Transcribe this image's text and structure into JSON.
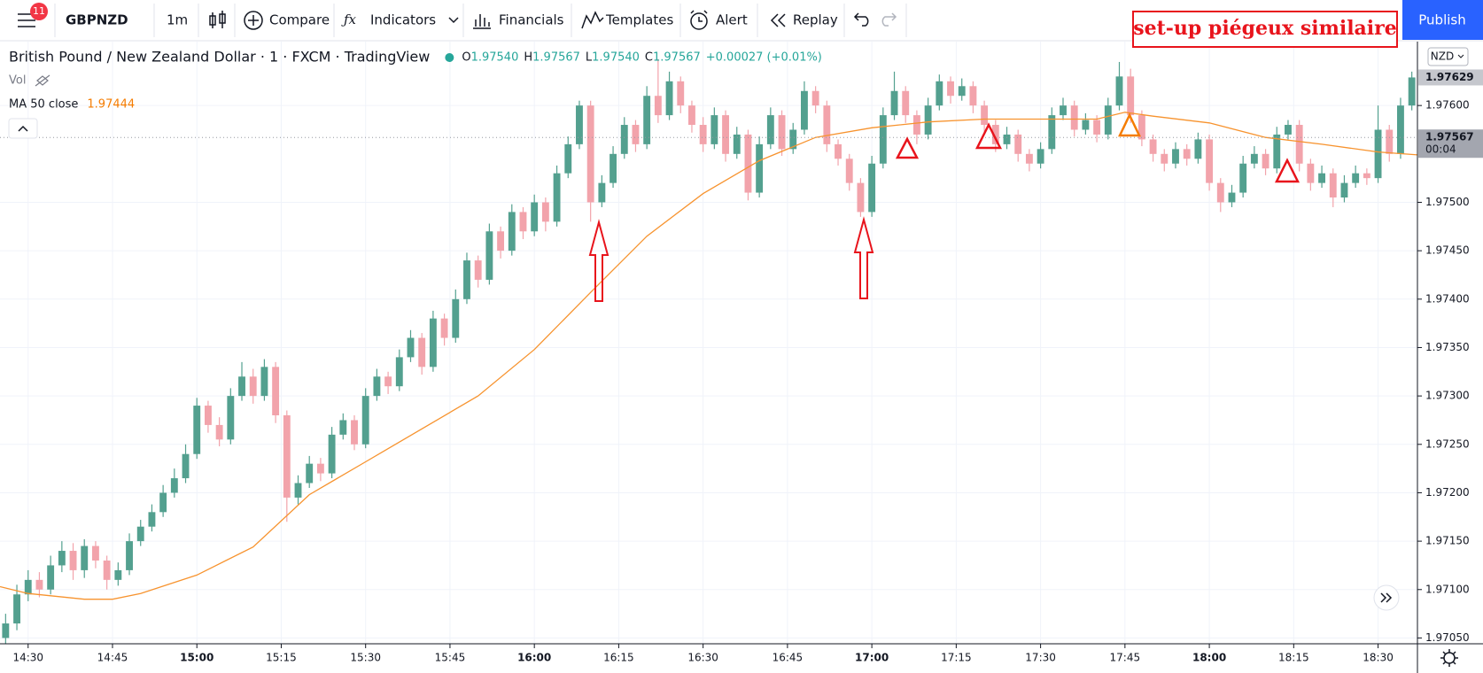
{
  "toolbar": {
    "badge": "11",
    "symbol": "GBPNZD",
    "interval": "1m",
    "buttons": [
      "Compare",
      "Indicators",
      "Financials",
      "Templates",
      "Alert",
      "Replay"
    ],
    "publish": "Publish"
  },
  "annotation": "set-up piégeux similaire",
  "legend": {
    "title": "British Pound / New Zealand Dollar · 1 · FXCM · TradingView",
    "ohlc": [
      {
        "k": "O",
        "v": "1.97540"
      },
      {
        "k": "H",
        "v": "1.97567"
      },
      {
        "k": "L",
        "v": "1.97540"
      },
      {
        "k": "C",
        "v": "1.97567"
      }
    ],
    "change": "+0.00027 (+0.01%)",
    "vol": "Vol",
    "ma_label": "MA 50 close",
    "ma_value": "1.97444"
  },
  "chart_data": {
    "type": "candlestick",
    "currency": "NZD",
    "up_color": "#53a08f",
    "down_color": "#f2a3ab",
    "grid": true,
    "xlim": [
      "14:25",
      "18:37"
    ],
    "ylim": [
      1.97044,
      1.97666
    ],
    "xticks": [
      "14:30",
      "14:45",
      "15:00",
      "15:15",
      "15:30",
      "15:45",
      "16:00",
      "16:15",
      "16:30",
      "16:45",
      "17:00",
      "17:15",
      "17:30",
      "17:45",
      "18:00",
      "18:15",
      "18:30"
    ],
    "yticks": [
      {
        "value": 1.9705,
        "label": "1.97050"
      },
      {
        "value": 1.971,
        "label": "1.97100"
      },
      {
        "value": 1.9715,
        "label": "1.97150"
      },
      {
        "value": 1.972,
        "label": "1.97200"
      },
      {
        "value": 1.9725,
        "label": "1.97250"
      },
      {
        "value": 1.973,
        "label": "1.97300"
      },
      {
        "value": 1.9735,
        "label": "1.97350"
      },
      {
        "value": 1.974,
        "label": "1.97400"
      },
      {
        "value": 1.9745,
        "label": "1.97450"
      },
      {
        "value": 1.975,
        "label": "1.97500"
      },
      {
        "value": 1.976,
        "label": "1.97600"
      }
    ],
    "x": [
      "14:26",
      "14:28",
      "14:30",
      "14:32",
      "14:34",
      "14:36",
      "14:38",
      "14:40",
      "14:42",
      "14:44",
      "14:46",
      "14:48",
      "14:50",
      "14:52",
      "14:54",
      "14:56",
      "14:58",
      "15:00",
      "15:02",
      "15:04",
      "15:06",
      "15:08",
      "15:10",
      "15:12",
      "15:14",
      "15:16",
      "15:18",
      "15:20",
      "15:22",
      "15:24",
      "15:26",
      "15:28",
      "15:30",
      "15:32",
      "15:34",
      "15:36",
      "15:38",
      "15:40",
      "15:42",
      "15:44",
      "15:46",
      "15:48",
      "15:50",
      "15:52",
      "15:54",
      "15:56",
      "15:58",
      "16:00",
      "16:02",
      "16:04",
      "16:06",
      "16:08",
      "16:10",
      "16:12",
      "16:14",
      "16:16",
      "16:18",
      "16:20",
      "16:22",
      "16:24",
      "16:26",
      "16:28",
      "16:30",
      "16:32",
      "16:34",
      "16:36",
      "16:38",
      "16:40",
      "16:42",
      "16:44",
      "16:46",
      "16:48",
      "16:50",
      "16:52",
      "16:54",
      "16:56",
      "16:58",
      "17:00",
      "17:02",
      "17:04",
      "17:06",
      "17:08",
      "17:10",
      "17:12",
      "17:14",
      "17:16",
      "17:18",
      "17:20",
      "17:22",
      "17:24",
      "17:26",
      "17:28",
      "17:30",
      "17:32",
      "17:34",
      "17:36",
      "17:38",
      "17:40",
      "17:42",
      "17:44",
      "17:46",
      "17:48",
      "17:50",
      "17:52",
      "17:54",
      "17:56",
      "17:58",
      "18:00",
      "18:02",
      "18:04",
      "18:06",
      "18:08",
      "18:10",
      "18:12",
      "18:14",
      "18:16",
      "18:18",
      "18:20",
      "18:22",
      "18:24",
      "18:26",
      "18:28",
      "18:30",
      "18:32",
      "18:34",
      "18:36"
    ],
    "ohlc": [
      [
        1.9705,
        1.97075,
        1.9704,
        1.97065
      ],
      [
        1.97065,
        1.97105,
        1.97058,
        1.97095
      ],
      [
        1.97095,
        1.9712,
        1.97088,
        1.9711
      ],
      [
        1.9711,
        1.97118,
        1.97092,
        1.971
      ],
      [
        1.971,
        1.97135,
        1.97095,
        1.97125
      ],
      [
        1.97125,
        1.9715,
        1.97118,
        1.9714
      ],
      [
        1.9714,
        1.97148,
        1.9711,
        1.9712
      ],
      [
        1.9712,
        1.97152,
        1.97112,
        1.97145
      ],
      [
        1.97145,
        1.9715,
        1.97122,
        1.9713
      ],
      [
        1.9713,
        1.97135,
        1.971,
        1.9711
      ],
      [
        1.9711,
        1.97128,
        1.97104,
        1.9712
      ],
      [
        1.9712,
        1.97158,
        1.97115,
        1.9715
      ],
      [
        1.9715,
        1.97172,
        1.97145,
        1.97165
      ],
      [
        1.97165,
        1.97188,
        1.9716,
        1.9718
      ],
      [
        1.9718,
        1.97208,
        1.97175,
        1.972
      ],
      [
        1.972,
        1.97225,
        1.97195,
        1.97215
      ],
      [
        1.97215,
        1.9725,
        1.9721,
        1.9724
      ],
      [
        1.9724,
        1.97298,
        1.97235,
        1.9729
      ],
      [
        1.9729,
        1.97295,
        1.97262,
        1.9727
      ],
      [
        1.9727,
        1.97278,
        1.97248,
        1.97255
      ],
      [
        1.97255,
        1.97308,
        1.9725,
        1.973
      ],
      [
        1.973,
        1.97335,
        1.97295,
        1.9732
      ],
      [
        1.9732,
        1.97328,
        1.97292,
        1.973
      ],
      [
        1.973,
        1.97338,
        1.97295,
        1.9733
      ],
      [
        1.9733,
        1.97335,
        1.97272,
        1.9728
      ],
      [
        1.9728,
        1.97285,
        1.9717,
        1.97195
      ],
      [
        1.97195,
        1.97218,
        1.97188,
        1.9721
      ],
      [
        1.9721,
        1.97238,
        1.97205,
        1.9723
      ],
      [
        1.9723,
        1.97236,
        1.97212,
        1.9722
      ],
      [
        1.9722,
        1.97268,
        1.97215,
        1.9726
      ],
      [
        1.9726,
        1.97282,
        1.97255,
        1.97275
      ],
      [
        1.97275,
        1.9728,
        1.97244,
        1.9725
      ],
      [
        1.9725,
        1.97308,
        1.97246,
        1.973
      ],
      [
        1.973,
        1.97328,
        1.97295,
        1.9732
      ],
      [
        1.9732,
        1.97325,
        1.97302,
        1.9731
      ],
      [
        1.9731,
        1.97348,
        1.97305,
        1.9734
      ],
      [
        1.9734,
        1.97368,
        1.97335,
        1.9736
      ],
      [
        1.9736,
        1.97365,
        1.97322,
        1.9733
      ],
      [
        1.9733,
        1.97388,
        1.97325,
        1.9738
      ],
      [
        1.9738,
        1.97385,
        1.97352,
        1.9736
      ],
      [
        1.9736,
        1.9741,
        1.97355,
        1.974
      ],
      [
        1.974,
        1.97448,
        1.97395,
        1.9744
      ],
      [
        1.9744,
        1.97445,
        1.97412,
        1.9742
      ],
      [
        1.9742,
        1.97478,
        1.97415,
        1.9747
      ],
      [
        1.9747,
        1.97475,
        1.97442,
        1.9745
      ],
      [
        1.9745,
        1.97498,
        1.97445,
        1.9749
      ],
      [
        1.9749,
        1.97495,
        1.97462,
        1.9747
      ],
      [
        1.9747,
        1.97508,
        1.97465,
        1.975
      ],
      [
        1.975,
        1.97505,
        1.9747,
        1.9748
      ],
      [
        1.9748,
        1.97538,
        1.97475,
        1.9753
      ],
      [
        1.9753,
        1.97568,
        1.97525,
        1.9756
      ],
      [
        1.9756,
        1.97605,
        1.97555,
        1.976
      ],
      [
        1.976,
        1.97605,
        1.9748,
        1.975
      ],
      [
        1.975,
        1.97528,
        1.97495,
        1.9752
      ],
      [
        1.9752,
        1.97558,
        1.97515,
        1.9755
      ],
      [
        1.9755,
        1.97588,
        1.97545,
        1.9758
      ],
      [
        1.9758,
        1.97585,
        1.97552,
        1.9756
      ],
      [
        1.9756,
        1.9762,
        1.97555,
        1.9761
      ],
      [
        1.9761,
        1.97648,
        1.97582,
        1.9759
      ],
      [
        1.9759,
        1.97635,
        1.97585,
        1.97625
      ],
      [
        1.97625,
        1.9763,
        1.97592,
        1.976
      ],
      [
        1.976,
        1.97605,
        1.97572,
        1.9758
      ],
      [
        1.9758,
        1.97588,
        1.97552,
        1.9756
      ],
      [
        1.9756,
        1.97598,
        1.97555,
        1.9759
      ],
      [
        1.9759,
        1.97595,
        1.97542,
        1.9755
      ],
      [
        1.9755,
        1.97578,
        1.97545,
        1.9757
      ],
      [
        1.9757,
        1.97575,
        1.97502,
        1.9751
      ],
      [
        1.9751,
        1.97568,
        1.97505,
        1.9756
      ],
      [
        1.9756,
        1.97598,
        1.97555,
        1.9759
      ],
      [
        1.9759,
        1.97595,
        1.97548,
        1.97555
      ],
      [
        1.97555,
        1.97582,
        1.9755,
        1.97575
      ],
      [
        1.97575,
        1.97625,
        1.9757,
        1.97615
      ],
      [
        1.97615,
        1.9762,
        1.97592,
        1.976
      ],
      [
        1.976,
        1.97605,
        1.97552,
        1.9756
      ],
      [
        1.9756,
        1.97565,
        1.97538,
        1.97545
      ],
      [
        1.97545,
        1.9755,
        1.97512,
        1.9752
      ],
      [
        1.9752,
        1.97525,
        1.97485,
        1.9749
      ],
      [
        1.9749,
        1.97548,
        1.97485,
        1.9754
      ],
      [
        1.9754,
        1.97598,
        1.97535,
        1.9759
      ],
      [
        1.9759,
        1.97635,
        1.97585,
        1.97615
      ],
      [
        1.97615,
        1.9762,
        1.97582,
        1.9759
      ],
      [
        1.9759,
        1.97595,
        1.9756,
        1.9757
      ],
      [
        1.9757,
        1.97608,
        1.97565,
        1.976
      ],
      [
        1.976,
        1.97632,
        1.97595,
        1.97625
      ],
      [
        1.97625,
        1.9763,
        1.97602,
        1.9761
      ],
      [
        1.9761,
        1.97628,
        1.97605,
        1.9762
      ],
      [
        1.9762,
        1.97625,
        1.97592,
        1.976
      ],
      [
        1.976,
        1.97605,
        1.97572,
        1.9758
      ],
      [
        1.9758,
        1.97585,
        1.97552,
        1.9756
      ],
      [
        1.9756,
        1.97578,
        1.97555,
        1.9757
      ],
      [
        1.9757,
        1.97575,
        1.97542,
        1.9755
      ],
      [
        1.9755,
        1.97555,
        1.97532,
        1.9754
      ],
      [
        1.9754,
        1.97562,
        1.97535,
        1.97555
      ],
      [
        1.97555,
        1.97598,
        1.9755,
        1.9759
      ],
      [
        1.9759,
        1.97608,
        1.97585,
        1.976
      ],
      [
        1.976,
        1.97605,
        1.97568,
        1.97575
      ],
      [
        1.97575,
        1.97592,
        1.9757,
        1.97585
      ],
      [
        1.97585,
        1.9759,
        1.97562,
        1.9757
      ],
      [
        1.9757,
        1.97608,
        1.97565,
        1.976
      ],
      [
        1.976,
        1.97645,
        1.97595,
        1.9763
      ],
      [
        1.9763,
        1.97638,
        1.97582,
        1.9759
      ],
      [
        1.9759,
        1.97595,
        1.97558,
        1.97565
      ],
      [
        1.97565,
        1.9757,
        1.97542,
        1.9755
      ],
      [
        1.9755,
        1.97555,
        1.97532,
        1.9754
      ],
      [
        1.9754,
        1.97562,
        1.97535,
        1.97555
      ],
      [
        1.97555,
        1.9756,
        1.97538,
        1.97545
      ],
      [
        1.97545,
        1.97572,
        1.9754,
        1.97565
      ],
      [
        1.97565,
        1.9757,
        1.97512,
        1.9752
      ],
      [
        1.9752,
        1.97525,
        1.9749,
        1.975
      ],
      [
        1.975,
        1.97518,
        1.97495,
        1.9751
      ],
      [
        1.9751,
        1.97548,
        1.97505,
        1.9754
      ],
      [
        1.9754,
        1.97558,
        1.97535,
        1.9755
      ],
      [
        1.9755,
        1.97555,
        1.97528,
        1.97535
      ],
      [
        1.97535,
        1.97578,
        1.9753,
        1.9757
      ],
      [
        1.9757,
        1.97585,
        1.97565,
        1.9758
      ],
      [
        1.9758,
        1.97585,
        1.97532,
        1.9754
      ],
      [
        1.9754,
        1.97545,
        1.97512,
        1.9752
      ],
      [
        1.9752,
        1.97538,
        1.97515,
        1.9753
      ],
      [
        1.9753,
        1.97535,
        1.97495,
        1.97505
      ],
      [
        1.97505,
        1.97528,
        1.975,
        1.9752
      ],
      [
        1.9752,
        1.97538,
        1.97515,
        1.9753
      ],
      [
        1.9753,
        1.97535,
        1.97518,
        1.97525
      ],
      [
        1.97525,
        1.976,
        1.9752,
        1.97575
      ],
      [
        1.97575,
        1.9758,
        1.97542,
        1.9755
      ],
      [
        1.9755,
        1.97608,
        1.97545,
        1.976
      ],
      [
        1.976,
        1.97635,
        1.97595,
        1.97629
      ]
    ],
    "ma": {
      "name": "MA 50 close",
      "color": "#f7932e",
      "x": [
        "14:25",
        "14:30",
        "14:40",
        "14:45",
        "14:50",
        "15:00",
        "15:10",
        "15:20",
        "15:30",
        "15:40",
        "15:50",
        "16:00",
        "16:10",
        "16:20",
        "16:30",
        "16:40",
        "16:50",
        "17:00",
        "17:10",
        "17:20",
        "17:30",
        "17:40",
        "17:45",
        "17:50",
        "18:00",
        "18:10",
        "18:20",
        "18:30",
        "18:37"
      ],
      "values": [
        1.97103,
        1.97096,
        1.9709,
        1.9709,
        1.97096,
        1.97115,
        1.97144,
        1.97198,
        1.97232,
        1.97266,
        1.973,
        1.97348,
        1.97407,
        1.97465,
        1.97509,
        1.97543,
        1.97567,
        1.97577,
        1.97583,
        1.97586,
        1.97586,
        1.97586,
        1.97593,
        1.97589,
        1.97582,
        1.97567,
        1.9756,
        1.97552,
        1.97549
      ]
    },
    "price_tags": [
      1.97629,
      1.97567
    ],
    "countdown": "00:04"
  }
}
